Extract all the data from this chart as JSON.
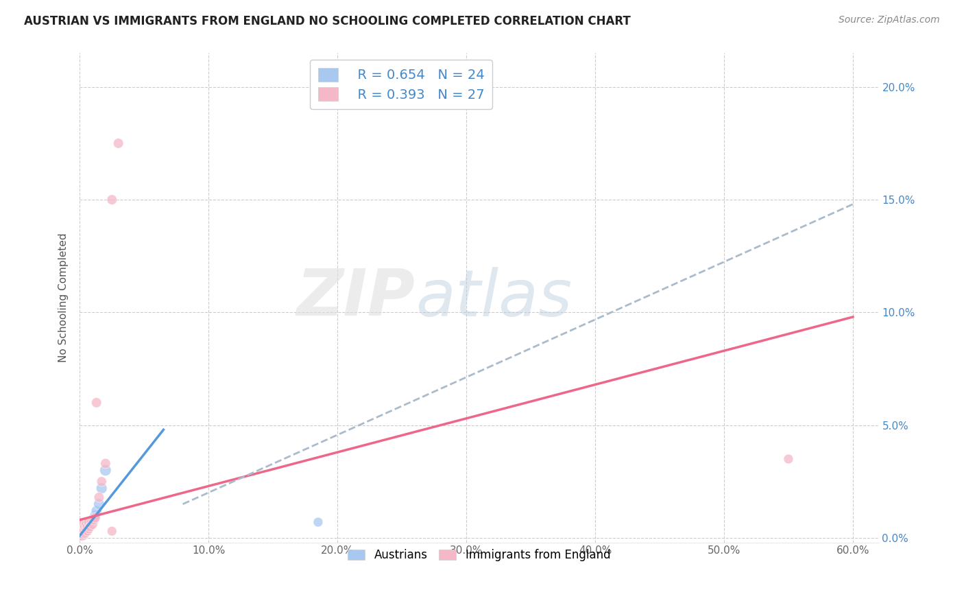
{
  "title": "AUSTRIAN VS IMMIGRANTS FROM ENGLAND NO SCHOOLING COMPLETED CORRELATION CHART",
  "source": "Source: ZipAtlas.com",
  "ylabel": "No Schooling Completed",
  "xlim": [
    0.0,
    0.62
  ],
  "ylim": [
    -0.002,
    0.215
  ],
  "xticks": [
    0.0,
    0.1,
    0.2,
    0.3,
    0.4,
    0.5,
    0.6
  ],
  "yticks": [
    0.0,
    0.05,
    0.1,
    0.15,
    0.2
  ],
  "ytick_labels": [
    "0.0%",
    "5.0%",
    "10.0%",
    "15.0%",
    "20.0%"
  ],
  "xtick_labels": [
    "0.0%",
    "10.0%",
    "20.0%",
    "30.0%",
    "40.0%",
    "50.0%",
    "60.0%"
  ],
  "legend_blue_R": "0.654",
  "legend_blue_N": "24",
  "legend_pink_R": "0.393",
  "legend_pink_N": "27",
  "blue_scatter_color": "#A8C8F0",
  "pink_scatter_color": "#F5B8C8",
  "blue_line_color": "#5599DD",
  "pink_line_color": "#EE6688",
  "dashed_line_color": "#AABBCC",
  "watermark_zip": "ZIP",
  "watermark_atlas": "atlas",
  "austrians_x": [
    0.001,
    0.002,
    0.003,
    0.003,
    0.004,
    0.004,
    0.005,
    0.005,
    0.006,
    0.006,
    0.007,
    0.007,
    0.008,
    0.008,
    0.009,
    0.01,
    0.01,
    0.011,
    0.012,
    0.013,
    0.015,
    0.017,
    0.02,
    0.185
  ],
  "austrians_y": [
    0.002,
    0.001,
    0.001,
    0.003,
    0.002,
    0.004,
    0.003,
    0.005,
    0.003,
    0.005,
    0.004,
    0.006,
    0.005,
    0.007,
    0.006,
    0.007,
    0.008,
    0.009,
    0.01,
    0.012,
    0.015,
    0.022,
    0.03,
    0.007
  ],
  "austrians_size": [
    200,
    120,
    80,
    100,
    80,
    90,
    100,
    110,
    90,
    100,
    90,
    100,
    95,
    110,
    100,
    110,
    120,
    110,
    120,
    120,
    130,
    130,
    140,
    100
  ],
  "england_x": [
    0.001,
    0.001,
    0.002,
    0.002,
    0.003,
    0.003,
    0.004,
    0.004,
    0.005,
    0.005,
    0.006,
    0.006,
    0.007,
    0.007,
    0.008,
    0.009,
    0.01,
    0.011,
    0.012,
    0.013,
    0.015,
    0.017,
    0.02,
    0.025,
    0.55,
    0.025,
    0.03
  ],
  "england_y": [
    0.003,
    0.005,
    0.002,
    0.004,
    0.003,
    0.006,
    0.002,
    0.005,
    0.004,
    0.006,
    0.003,
    0.005,
    0.004,
    0.007,
    0.005,
    0.007,
    0.006,
    0.008,
    0.009,
    0.06,
    0.018,
    0.025,
    0.033,
    0.003,
    0.035,
    0.15,
    0.175
  ],
  "england_size": [
    400,
    150,
    130,
    100,
    110,
    120,
    100,
    110,
    100,
    110,
    100,
    110,
    100,
    110,
    105,
    100,
    105,
    110,
    115,
    110,
    110,
    105,
    110,
    100,
    100,
    110,
    110
  ],
  "blue_line_x": [
    0.0,
    0.065
  ],
  "blue_line_y": [
    0.001,
    0.048
  ],
  "pink_line_x": [
    0.0,
    0.6
  ],
  "pink_line_y": [
    0.008,
    0.098
  ],
  "dashed_line_x": [
    0.08,
    0.6
  ],
  "dashed_line_y": [
    0.015,
    0.148
  ]
}
